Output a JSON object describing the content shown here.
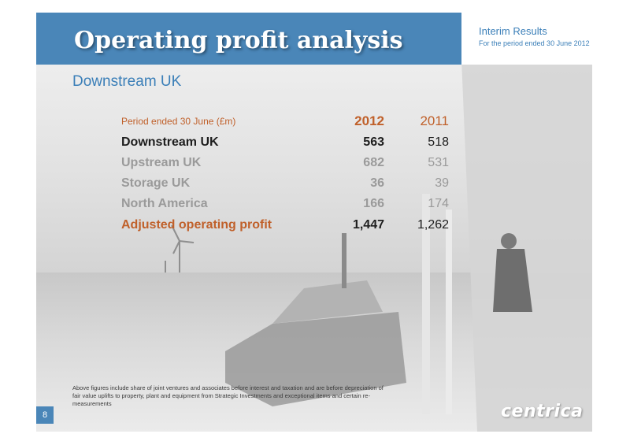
{
  "header": {
    "title": "Operating profit analysis",
    "interim": "Interim Results",
    "period": "For the period ended 30 June 2012"
  },
  "subtitle": "Downstream UK",
  "table": {
    "label": "Period ended 30 June (£m)",
    "col_2012": "2012",
    "col_2011": "2011",
    "rows": [
      {
        "label": "Downstream UK",
        "v2012": "563",
        "v2011": "518"
      },
      {
        "label": "Upstream UK",
        "v2012": "682",
        "v2011": "531"
      },
      {
        "label": "Storage UK",
        "v2012": "36",
        "v2011": "39"
      },
      {
        "label": "North America",
        "v2012": "166",
        "v2011": "174"
      },
      {
        "label": "Adjusted operating profit",
        "v2012": "1,447",
        "v2011": "1,262"
      }
    ]
  },
  "footnote": "Above figures include share of joint ventures and associates before interest and taxation and are before depreciation of fair value uplifts to property, plant and equipment from Strategic Investments and exceptional items and certain re-measurements",
  "page_number": "8",
  "logo_text": "centrica",
  "colors": {
    "header_blue": "#4a86b8",
    "accent_orange": "#c0602a",
    "muted_grey": "#9a9a9a"
  }
}
